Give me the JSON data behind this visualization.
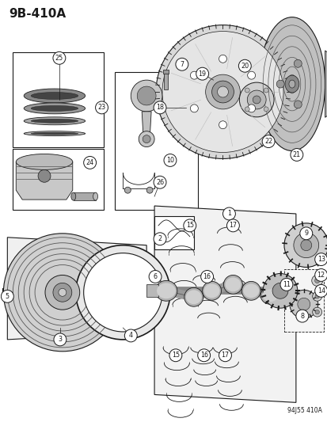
{
  "title": "9B-410A",
  "footer": "94J55 410A",
  "bg_color": "#ffffff",
  "fig_width": 4.14,
  "fig_height": 5.33,
  "dpi": 100
}
